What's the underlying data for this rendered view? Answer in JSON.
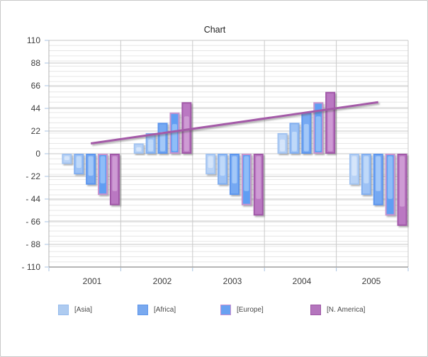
{
  "chart_data": {
    "type": "bar",
    "title": "Chart",
    "categories": [
      "2001",
      "2002",
      "2003",
      "2004",
      "2005"
    ],
    "y_axis": {
      "min": -110,
      "max": 110,
      "major_step": 22,
      "minor_step": 5,
      "tick_labels": [
        "110",
        "88",
        "66",
        "44",
        "22",
        "0",
        "- 22",
        "- 44",
        "- 66",
        "- 88",
        "- 110"
      ]
    },
    "grid": {
      "minor_color": "#e6e6e6",
      "major_color": "#c7c7c7",
      "vertical_color": "#cacaca",
      "y_axis_color": "#b3b3b3",
      "x_axis_color": "#9e9e9e",
      "tick_color": "#a9c3e0"
    },
    "bar_series": [
      {
        "name": "[Asia]",
        "in_legend": true,
        "fill": "#b9d3f6",
        "border": "#a3c4f1",
        "highlight": "#d8e7fb",
        "values": [
          -10,
          10,
          -20,
          20,
          -30
        ]
      },
      {
        "name": "",
        "in_legend": false,
        "fill": "#9dc2f5",
        "border": "#82aff0",
        "highlight": "#c3dcfa",
        "values": [
          -20,
          20,
          -30,
          30,
          -40
        ]
      },
      {
        "name": "[Africa]",
        "in_legend": true,
        "fill": "#76a9f2",
        "border": "#5d96ee",
        "highlight": "#a8cbf8",
        "values": [
          -30,
          30,
          -40,
          40,
          -50
        ]
      },
      {
        "name": "[Europe]",
        "in_legend": true,
        "fill": "#619ef3",
        "border": "#c693cd",
        "highlight": "#94c0f8",
        "values": [
          -40,
          40,
          -50,
          50,
          -60
        ]
      },
      {
        "name": "[N. America]",
        "in_legend": true,
        "fill": "#ba78c2",
        "border": "#a158a8",
        "highlight": "#d09fd6",
        "values": [
          -50,
          50,
          -60,
          60,
          -70
        ]
      }
    ],
    "line_series": {
      "color": "#a45aa8",
      "values": [
        10,
        20,
        30,
        40,
        50
      ]
    },
    "legend": {
      "position": "bottom",
      "items": [
        {
          "label": "[Asia]",
          "fill": "#aecbf0",
          "border": "#96bbec"
        },
        {
          "label": "[Africa]",
          "fill": "#79a9ef",
          "border": "#5f96ea"
        },
        {
          "label": "[Europe]",
          "fill": "#69a1f1",
          "border": "#c98fd0"
        },
        {
          "label": "[N. America]",
          "fill": "#b475bd",
          "border": "#9d56a4"
        }
      ]
    }
  }
}
